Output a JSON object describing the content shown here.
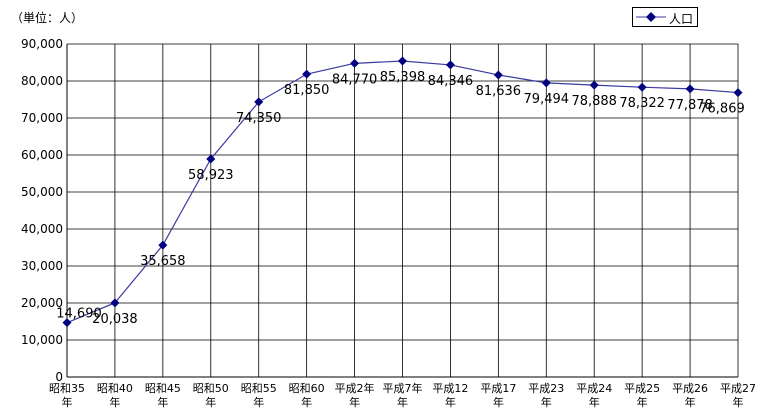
{
  "unit_label": "（単位：人）",
  "colors": {
    "series": "#000080",
    "line": "#3a3aa0",
    "grid": "#000000"
  },
  "chart_data": {
    "type": "line",
    "title": "",
    "xlabel": "",
    "ylabel": "",
    "ylim": [
      0,
      90000
    ],
    "ytick_step": 10000,
    "ytick_labels": [
      "0",
      "10,000",
      "20,000",
      "30,000",
      "40,000",
      "50,000",
      "60,000",
      "70,000",
      "80,000",
      "90,000"
    ],
    "grid": true,
    "legend_position": "top-right",
    "categories": [
      [
        "昭和35",
        "年"
      ],
      [
        "昭和40",
        "年"
      ],
      [
        "昭和45",
        "年"
      ],
      [
        "昭和50",
        "年"
      ],
      [
        "昭和55",
        "年"
      ],
      [
        "昭和60",
        "年"
      ],
      [
        "平成2年",
        "年"
      ],
      [
        "平成7年",
        "年"
      ],
      [
        "平成12",
        "年"
      ],
      [
        "平成17",
        "年"
      ],
      [
        "平成23",
        "年"
      ],
      [
        "平成24",
        "年"
      ],
      [
        "平成25",
        "年"
      ],
      [
        "平成26",
        "年"
      ],
      [
        "平成27",
        "年"
      ]
    ],
    "series": [
      {
        "name": "人口",
        "values": [
          14690,
          20038,
          35658,
          58923,
          74350,
          81850,
          84770,
          85398,
          84346,
          81636,
          79494,
          78888,
          78322,
          77878,
          76869
        ],
        "data_labels": [
          "14,690",
          "20,038",
          "35,658",
          "58,923",
          "74,350",
          "81,850",
          "84,770",
          "85,398",
          "84,346",
          "81,636",
          "79,494",
          "78,888",
          "78,322",
          "77,878",
          "76,869"
        ]
      }
    ]
  }
}
